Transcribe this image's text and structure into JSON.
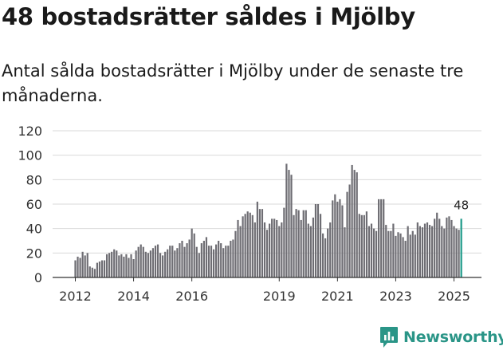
{
  "title": "48 bostadsrätter såldes i Mjölby",
  "subtitle": "Antal sålda bostadsrätter i Mjölby under de senaste tre månaderna.",
  "brand": "Newsworthy",
  "colors": {
    "bar": "#6e6d73",
    "highlight": "#1e9a8a",
    "brand": "#2a9587"
  },
  "chart_data": {
    "type": "bar",
    "title": "Antal sålda bostadsrätter i Mjölby under de senaste tre månaderna",
    "ylim": [
      0,
      120
    ],
    "yticks": [
      0,
      20,
      40,
      60,
      80,
      100,
      120
    ],
    "start": "2012-01",
    "xtick_labels": [
      "2012",
      "2014",
      "2016",
      "2019",
      "2021",
      "2023",
      "2025"
    ],
    "xtick_months": [
      "2012-01",
      "2014-01",
      "2016-01",
      "2019-01",
      "2021-01",
      "2023-01",
      "2025-01"
    ],
    "values": [
      14,
      17,
      16,
      21,
      18,
      20,
      9,
      8,
      7,
      12,
      13,
      14,
      14,
      19,
      20,
      21,
      23,
      22,
      18,
      19,
      17,
      19,
      16,
      19,
      15,
      22,
      25,
      27,
      25,
      21,
      20,
      22,
      24,
      26,
      27,
      20,
      18,
      21,
      23,
      26,
      26,
      22,
      24,
      28,
      30,
      25,
      28,
      31,
      40,
      36,
      25,
      20,
      28,
      30,
      33,
      26,
      26,
      23,
      27,
      30,
      28,
      24,
      26,
      26,
      30,
      31,
      38,
      47,
      42,
      50,
      52,
      54,
      53,
      51,
      45,
      62,
      56,
      56,
      45,
      39,
      44,
      48,
      48,
      47,
      42,
      45,
      57,
      93,
      88,
      84,
      51,
      56,
      55,
      47,
      55,
      55,
      44,
      42,
      49,
      60,
      60,
      52,
      36,
      32,
      40,
      45,
      63,
      68,
      62,
      64,
      59,
      41,
      70,
      76,
      92,
      88,
      86,
      52,
      51,
      51,
      54,
      42,
      44,
      40,
      38,
      64,
      64,
      64,
      43,
      38,
      38,
      44,
      34,
      37,
      36,
      33,
      30,
      42,
      35,
      38,
      35,
      45,
      42,
      41,
      44,
      45,
      43,
      42,
      48,
      53,
      48,
      42,
      40,
      49,
      50,
      47,
      42,
      40,
      39,
      48
    ],
    "highlight_label": "48"
  }
}
